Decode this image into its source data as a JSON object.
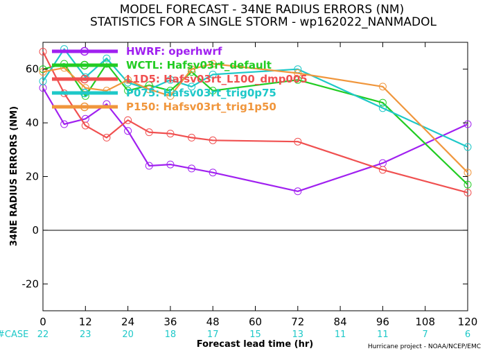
{
  "chart_data": {
    "type": "line",
    "title": "MODEL FORECAST - 34NE RADIUS ERRORS (NM)",
    "subtitle": "STATISTICS FOR A SINGLE STORM - wp162022_NANMADOL",
    "xlabel": "Forecast lead time (hr)",
    "ylabel": "34NE RADIUS ERRORS (NM)",
    "xlim": [
      0,
      120
    ],
    "ylim": [
      -30,
      70
    ],
    "xticks": [
      0,
      12,
      24,
      36,
      48,
      60,
      72,
      84,
      96,
      108,
      120
    ],
    "yticks": [
      -20,
      0,
      20,
      40,
      60
    ],
    "grid": false,
    "legend_position": "top-left",
    "case_label": "#CASE",
    "case_counts": [
      "22",
      "23",
      "20",
      "18",
      "17",
      "15",
      "13",
      "11",
      "11",
      "7",
      "6"
    ],
    "credit": "Hurricane project - NOAA/NCEP/EMC",
    "series": [
      {
        "name": "HWRF: operhwrf",
        "color": "#a020f0",
        "x": [
          0,
          6,
          12,
          18,
          24,
          30,
          36,
          42,
          48,
          72,
          96,
          120
        ],
        "y": [
          53,
          39.5,
          41.5,
          47,
          37,
          24,
          24.5,
          23,
          21.5,
          14.5,
          25,
          39.5
        ]
      },
      {
        "name": "WCTL: Hafsv03rt_default",
        "color": "#22cc22",
        "x": [
          0,
          6,
          12,
          18,
          24,
          30,
          36,
          42,
          48,
          72,
          96,
          120
        ],
        "y": [
          60,
          62,
          50,
          62,
          52,
          54,
          52,
          59,
          52,
          56,
          47.5,
          17
        ]
      },
      {
        "name": "L1D5: Hafsv03rt_L100_dmp005",
        "color": "#f05050",
        "x": [
          0,
          6,
          12,
          18,
          24,
          30,
          36,
          42,
          48,
          72,
          96,
          120
        ],
        "y": [
          66.5,
          51,
          39,
          34.5,
          41,
          36.5,
          36,
          34.5,
          33.5,
          33,
          22.5,
          14
        ]
      },
      {
        "name": "P075: Hafsv03rt_trig0p75",
        "color": "#1ec8c8",
        "x": [
          0,
          6,
          12,
          18,
          24,
          30,
          36,
          42,
          48,
          72,
          96,
          120
        ],
        "y": [
          55.5,
          67.5,
          57,
          64,
          55,
          52.5,
          56,
          53.5,
          58,
          60,
          45.5,
          31
        ]
      },
      {
        "name": "P150: Hafsv03rt_trig1p50",
        "color": "#f0963c",
        "x": [
          0,
          6,
          12,
          18,
          24,
          30,
          36,
          42,
          48,
          72,
          96,
          120
        ],
        "y": [
          59,
          60.5,
          53,
          52,
          56,
          52.5,
          50,
          60,
          62,
          58.5,
          53.5,
          21.5
        ]
      }
    ]
  }
}
